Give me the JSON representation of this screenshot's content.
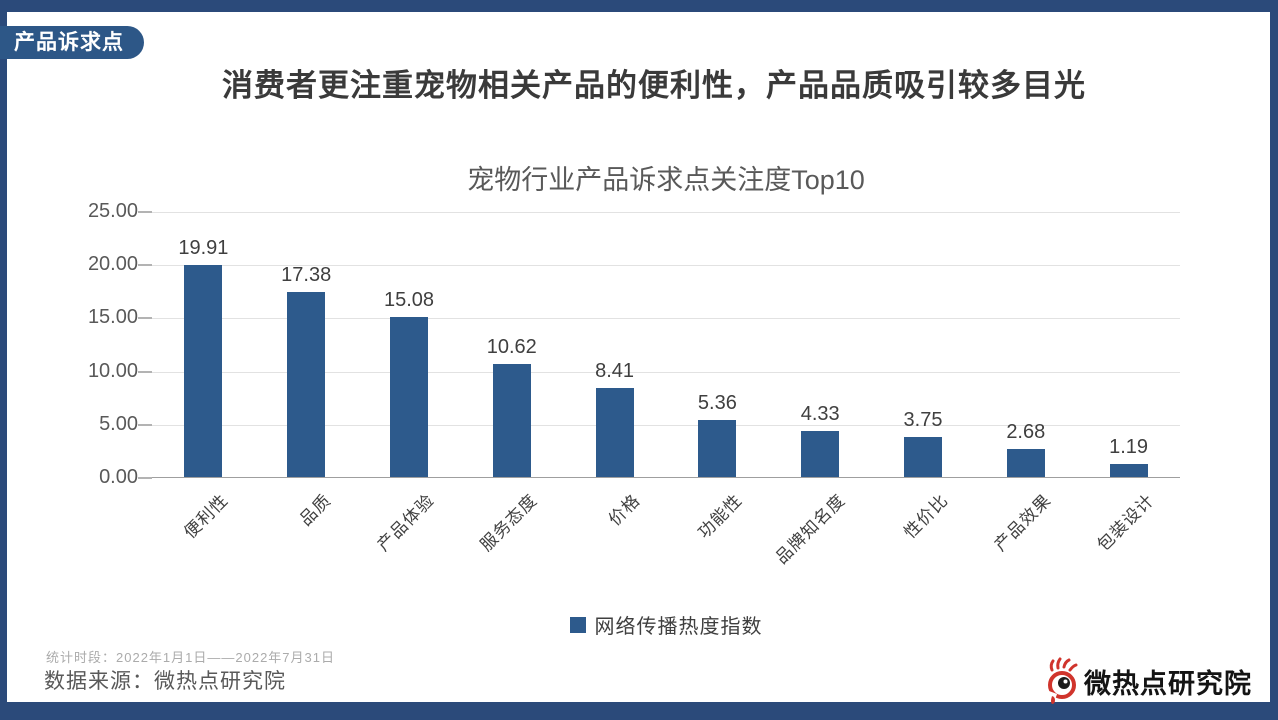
{
  "page": {
    "badge": "产品诉求点",
    "title": "消费者更注重宠物相关产品的便利性，产品品质吸引较多目光"
  },
  "chart_data": {
    "type": "bar",
    "title": "宠物行业产品诉求点关注度Top10",
    "categories": [
      "便利性",
      "品质",
      "产品体验",
      "服务态度",
      "价格",
      "功能性",
      "品牌知名度",
      "性价比",
      "产品效果",
      "包装设计"
    ],
    "series": [
      {
        "name": "网络传播热度指数",
        "values": [
          19.91,
          17.38,
          15.08,
          10.62,
          8.41,
          5.36,
          4.33,
          3.75,
          2.68,
          1.19
        ]
      }
    ],
    "value_labels": [
      "19.91",
      "17.38",
      "15.08",
      "10.62",
      "8.41",
      "5.36",
      "4.33",
      "3.75",
      "2.68",
      "1.19"
    ],
    "ylim": [
      0,
      25
    ],
    "ytick_step": 5,
    "ytick_labels": [
      "25.00",
      "20.00",
      "15.00",
      "10.00",
      "5.00",
      "0.00"
    ],
    "grid": true,
    "legend_position": "bottom",
    "bar_color": "#2d5a8c"
  },
  "footer": {
    "period": "统计时段：2022年1月1日——2022年7月31日",
    "source": "数据来源：微热点研究院",
    "logo_text": "微热点研究院"
  },
  "colors": {
    "frame_blue": "#2b4a7a",
    "badge_blue": "#2d5787",
    "bar_blue": "#2d5a8c",
    "logo_red": "#d0342c",
    "title_text": "#3a3a3a",
    "axis_text": "#595959",
    "gridline": "#e2e2e2"
  }
}
